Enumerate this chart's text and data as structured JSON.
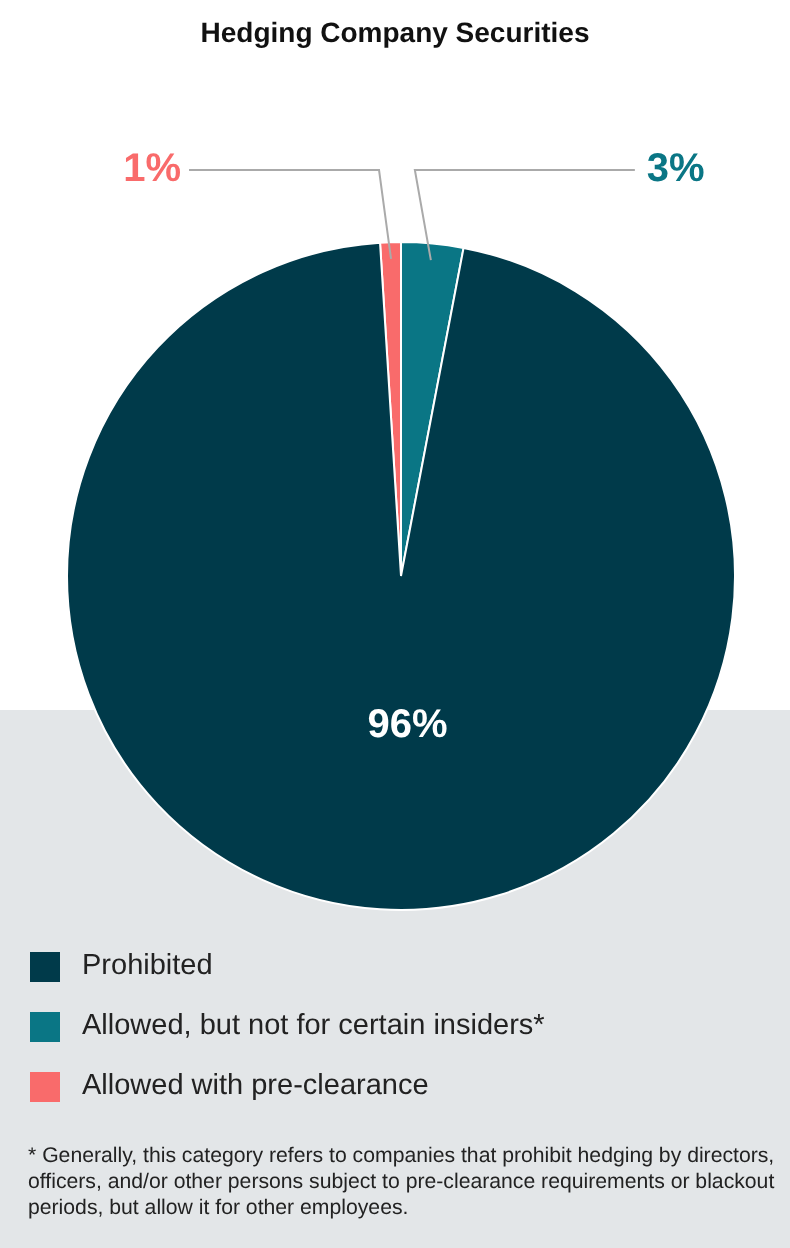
{
  "chart_data": {
    "type": "pie",
    "title": "Hedging Company Securities",
    "categories": [
      "Prohibited",
      "Allowed, but not for certain insiders*",
      "Allowed with pre-clearance"
    ],
    "values": [
      96,
      3,
      1
    ],
    "colors": [
      "#003a4a",
      "#0a7685",
      "#f96b6b"
    ],
    "value_labels": [
      "96%",
      "3%",
      "1%"
    ],
    "legend": "bottom left",
    "annotations": [
      "* Generally, this category refers to companies that prohibit hedging by directors, officers, and/or other persons subject to pre-clearance requirements or blackout periods, but allow it for other employees."
    ]
  }
}
